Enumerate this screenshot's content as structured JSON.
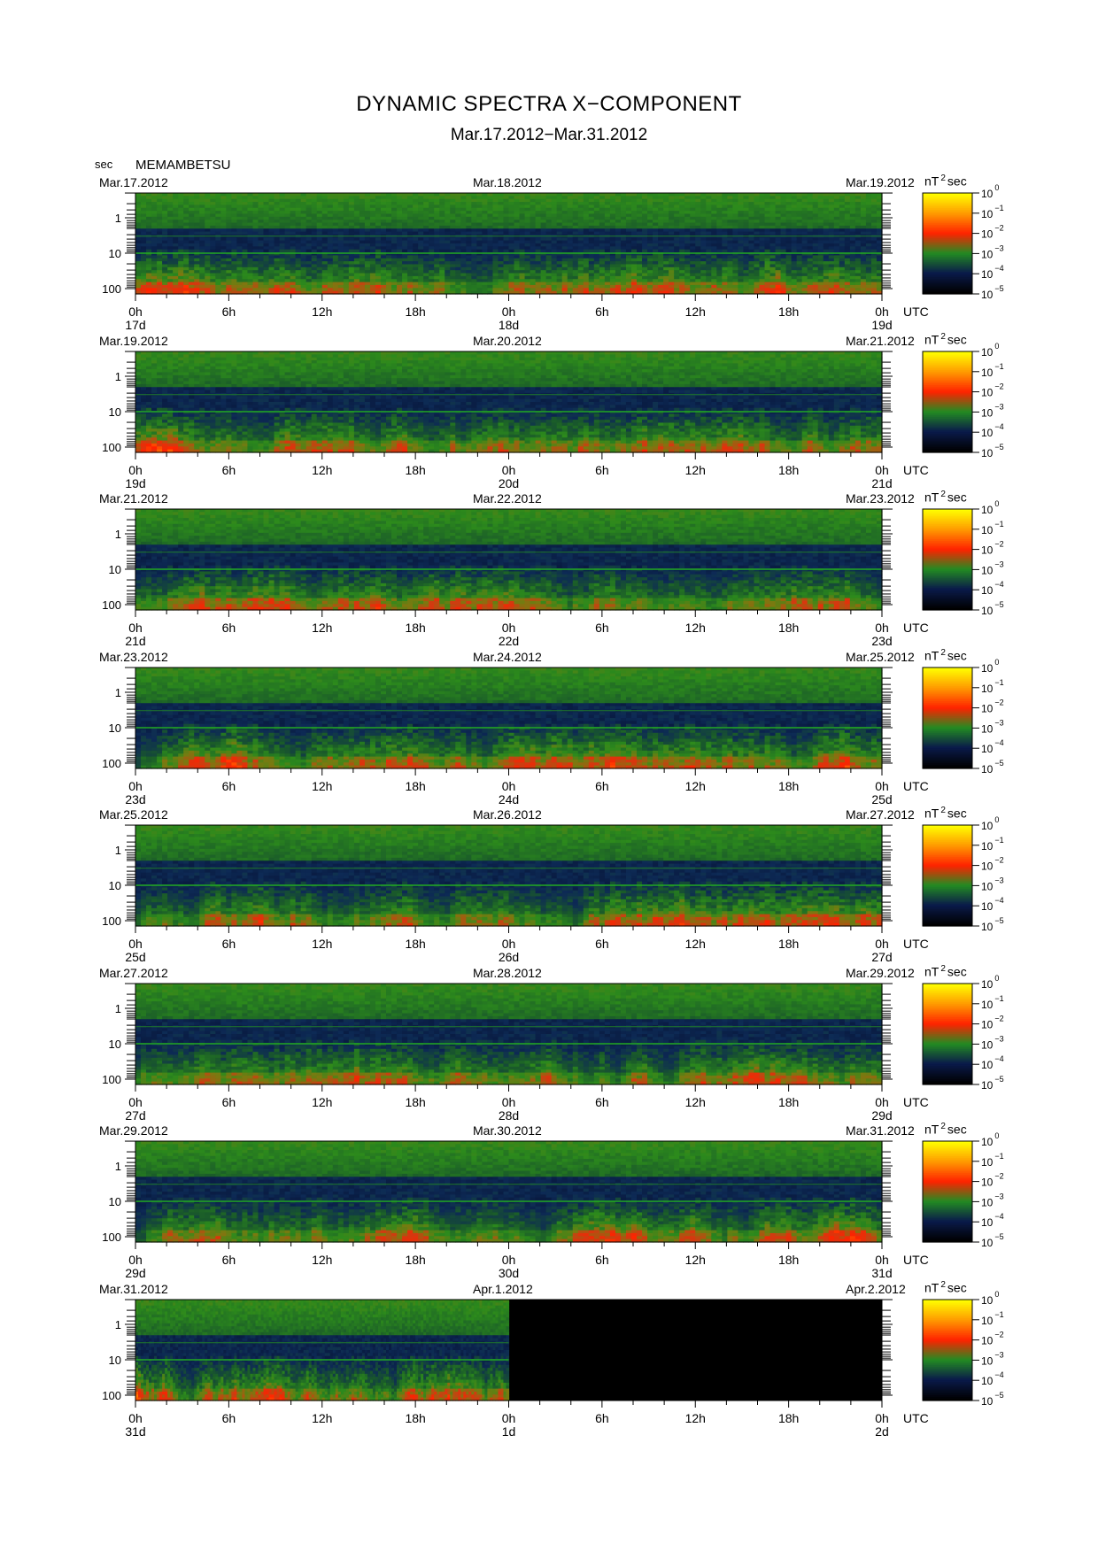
{
  "header": {
    "title": "DYNAMIC SPECTRA X−COMPONENT",
    "subtitle": "Mar.17.2012−Mar.31.2012",
    "period_unit": "sec",
    "station": "MEMAMBETSU"
  },
  "chart_data": {
    "type": "heatmap",
    "x_ticks": [
      "0h",
      "6h",
      "12h",
      "18h",
      "0h",
      "6h",
      "12h",
      "18h",
      "0h"
    ],
    "x_unit": "UTC",
    "y_ticks": [
      "1",
      "10",
      "100"
    ],
    "y_unit": "sec",
    "y_scale": "log",
    "colorbar": {
      "unit_base": "nT",
      "unit_exp": "2",
      "unit_tail": "sec",
      "ticks": [
        {
          "base": "10",
          "exp": "0"
        },
        {
          "base": "10",
          "exp": "−1"
        },
        {
          "base": "10",
          "exp": "−2"
        },
        {
          "base": "10",
          "exp": "−3"
        },
        {
          "base": "10",
          "exp": "−4"
        },
        {
          "base": "10",
          "exp": "−5"
        }
      ],
      "colors": [
        "#ffff00",
        "#ff9900",
        "#ff2200",
        "#228b22",
        "#0a1a4a",
        "#000000"
      ]
    },
    "panels": [
      {
        "date_left": "Mar.17.2012",
        "date_mid": "Mar.18.2012",
        "date_right": "Mar.19.2012",
        "day_left": "17d",
        "day_mid": "18d",
        "day_right": "19d",
        "data_fraction": 1.0
      },
      {
        "date_left": "Mar.19.2012",
        "date_mid": "Mar.20.2012",
        "date_right": "Mar.21.2012",
        "day_left": "19d",
        "day_mid": "20d",
        "day_right": "21d",
        "data_fraction": 1.0
      },
      {
        "date_left": "Mar.21.2012",
        "date_mid": "Mar.22.2012",
        "date_right": "Mar.23.2012",
        "day_left": "21d",
        "day_mid": "22d",
        "day_right": "23d",
        "data_fraction": 1.0
      },
      {
        "date_left": "Mar.23.2012",
        "date_mid": "Mar.24.2012",
        "date_right": "Mar.25.2012",
        "day_left": "23d",
        "day_mid": "24d",
        "day_right": "25d",
        "data_fraction": 1.0
      },
      {
        "date_left": "Mar.25.2012",
        "date_mid": "Mar.26.2012",
        "date_right": "Mar.27.2012",
        "day_left": "25d",
        "day_mid": "26d",
        "day_right": "27d",
        "data_fraction": 1.0
      },
      {
        "date_left": "Mar.27.2012",
        "date_mid": "Mar.28.2012",
        "date_right": "Mar.29.2012",
        "day_left": "27d",
        "day_mid": "28d",
        "day_right": "29d",
        "data_fraction": 1.0
      },
      {
        "date_left": "Mar.29.2012",
        "date_mid": "Mar.30.2012",
        "date_right": "Mar.31.2012",
        "day_left": "29d",
        "day_mid": "30d",
        "day_right": "31d",
        "data_fraction": 1.0
      },
      {
        "date_left": "Mar.31.2012",
        "date_mid": "Apr.1.2012",
        "date_right": "Apr.2.2012",
        "day_left": "31d",
        "day_mid": "1d",
        "day_right": "2d",
        "data_fraction": 0.5
      }
    ]
  }
}
